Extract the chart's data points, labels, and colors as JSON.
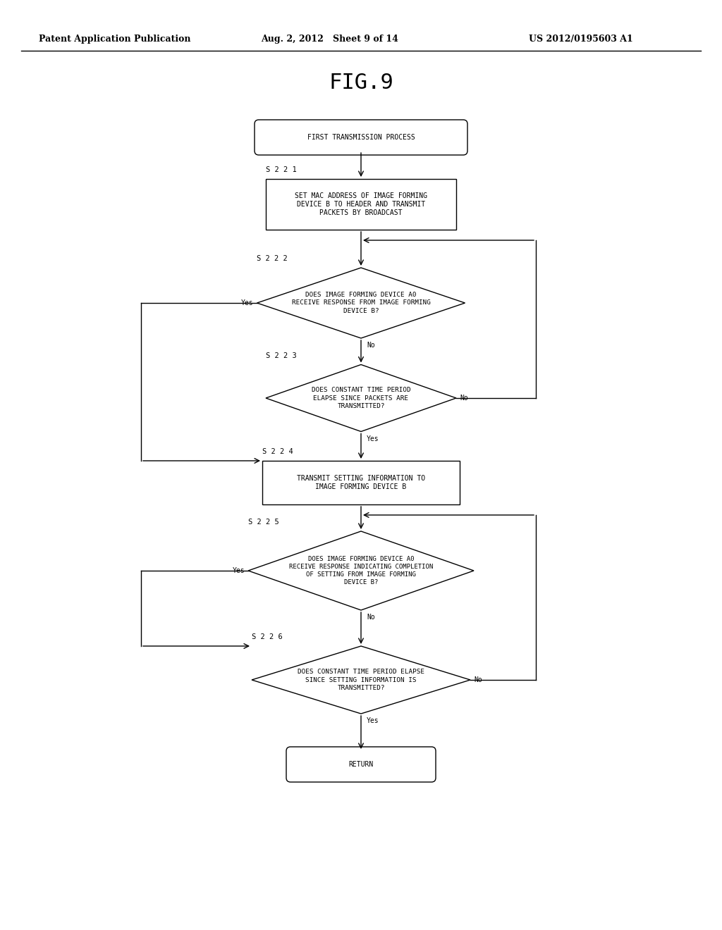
{
  "title": "FIG.9",
  "header_left": "Patent Application Publication",
  "header_mid": "Aug. 2, 2012   Sheet 9 of 14",
  "header_right": "US 2012/0195603 A1",
  "bg_color": "#ffffff",
  "font_size": 7.0,
  "label_font_size": 7.5,
  "start_text": "FIRST TRANSMISSION PROCESS",
  "s221_label": "S 2 2 1",
  "s221_text": "SET MAC ADDRESS OF IMAGE FORMING\nDEVICE B TO HEADER AND TRANSMIT\nPACKETS BY BROADCAST",
  "s222_label": "S 2 2 2",
  "s222_text": "DOES IMAGE FORMING DEVICE A0\nRECEIVE RESPONSE FROM IMAGE FORMING\nDEVICE B?",
  "s223_label": "S 2 2 3",
  "s223_text": "DOES CONSTANT TIME PERIOD\nELAPSE SINCE PACKETS ARE\nTRANSMITTED?",
  "s224_label": "S 2 2 4",
  "s224_text": "TRANSMIT SETTING INFORMATION TO\nIMAGE FORMING DEVICE B",
  "s225_label": "S 2 2 5",
  "s225_text": "DOES IMAGE FORMING DEVICE A0\nRECEIVE RESPONSE INDICATING COMPLETION\nOF SETTING FROM IMAGE FORMING\nDEVICE B?",
  "s226_label": "S 2 2 6",
  "s226_text": "DOES CONSTANT TIME PERIOD ELAPSE\nSINCE SETTING INFORMATION IS\nTRANSMITTED?",
  "end_text": "RETURN",
  "yes_label": "Yes",
  "no_label": "No"
}
